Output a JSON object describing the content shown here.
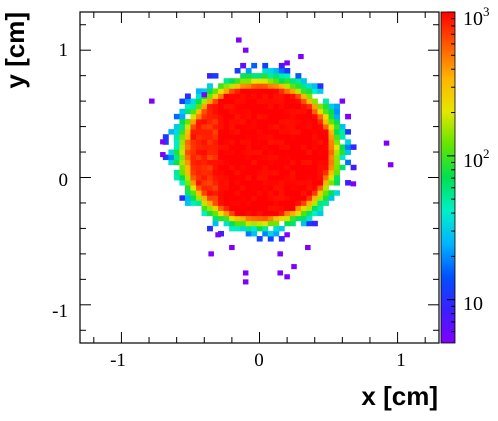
{
  "chart_data": {
    "type": "heatmap",
    "xlabel": "x [cm]",
    "ylabel": "y [cm]",
    "xlim": [
      -1.3,
      1.3
    ],
    "ylim": [
      -1.3,
      1.3
    ],
    "x_ticks": [
      "-1",
      "0",
      "1"
    ],
    "y_ticks": [
      "-1",
      "0",
      "1"
    ],
    "colorbar": {
      "scale": "log",
      "range": [
        5,
        1000
      ],
      "labels": [
        {
          "value": 1000,
          "base": "10",
          "exp": "3"
        },
        {
          "value": 100,
          "base": "10",
          "exp": "2"
        },
        {
          "value": 10,
          "base": "10",
          "exp": ""
        }
      ]
    },
    "bin_size_cm": 0.04,
    "beam": {
      "center": [
        0.0,
        0.2
      ],
      "core_radius": 0.5,
      "edge_radius": 0.58,
      "halo_radius": 0.7,
      "core_counts": 1000,
      "edge_counts": 100,
      "halo_counts": 8
    },
    "outliers": [
      {
        "x": -0.1,
        "y": 1.0
      },
      {
        "x": -0.15,
        "y": 1.08
      },
      {
        "x": 0.2,
        "y": 0.9
      },
      {
        "x": 0.3,
        "y": 0.95
      },
      {
        "x": -0.4,
        "y": 0.65
      },
      {
        "x": 0.6,
        "y": 0.6
      },
      {
        "x": -0.78,
        "y": 0.6
      },
      {
        "x": -0.7,
        "y": 0.28
      },
      {
        "x": 0.92,
        "y": 0.27
      },
      {
        "x": 0.95,
        "y": 0.1
      },
      {
        "x": -0.7,
        "y": 0.18
      },
      {
        "x": 0.68,
        "y": -0.05
      },
      {
        "x": -0.3,
        "y": -0.45
      },
      {
        "x": 0.2,
        "y": -0.45
      },
      {
        "x": -0.2,
        "y": -0.55
      },
      {
        "x": 0.15,
        "y": -0.6
      },
      {
        "x": -0.35,
        "y": -0.6
      },
      {
        "x": 0.25,
        "y": -0.7
      },
      {
        "x": 0.35,
        "y": -0.55
      },
      {
        "x": -0.1,
        "y": -0.75
      },
      {
        "x": 0.15,
        "y": -0.75
      },
      {
        "x": 0.2,
        "y": -0.78
      },
      {
        "x": -0.1,
        "y": -0.82
      }
    ]
  }
}
